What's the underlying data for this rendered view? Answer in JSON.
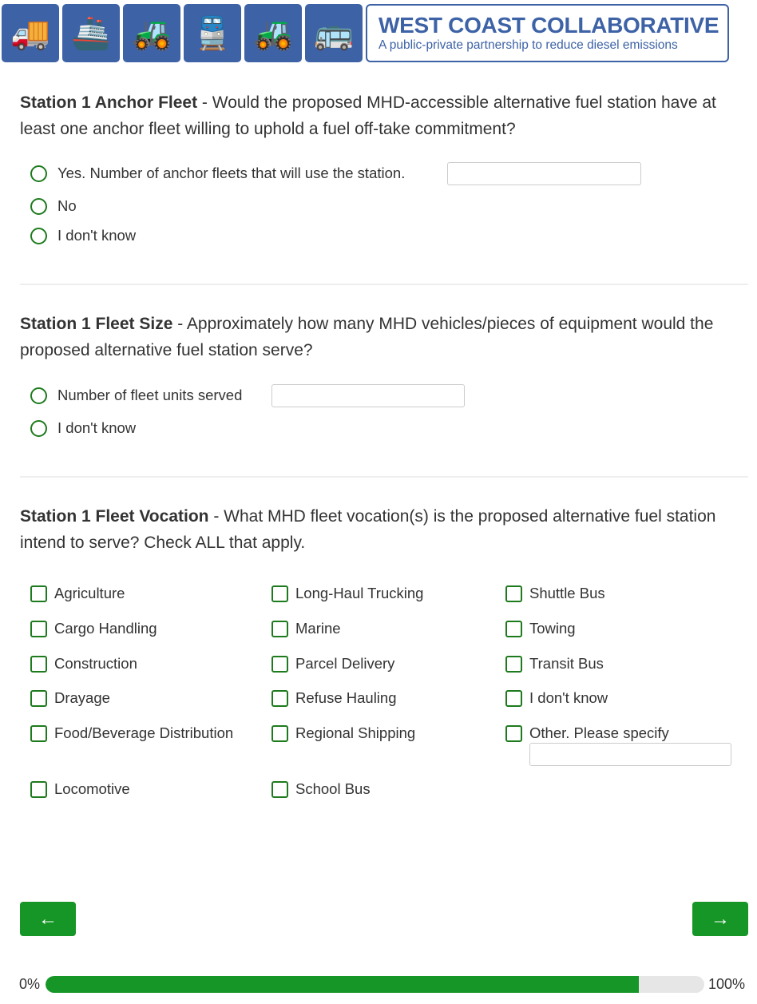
{
  "header": {
    "logo_title": "WEST COAST COLLABORATIVE",
    "logo_subtitle": "A public-private partnership to reduce diesel emissions",
    "icons": [
      "truck-icon",
      "ship-icon",
      "loader-icon",
      "locomotive-icon",
      "tractor-icon",
      "bus-icon"
    ]
  },
  "q1": {
    "title": "Station 1 Anchor Fleet",
    "text": " - Would the proposed MHD-accessible alternative fuel station have at least one anchor fleet willing to uphold a fuel off-take commitment?",
    "options": [
      "Yes. Number of anchor fleets that will use the station.",
      "No",
      "I don't know"
    ],
    "input_value": ""
  },
  "q2": {
    "title": "Station 1 Fleet Size",
    "text": " - Approximately how many MHD vehicles/pieces of equipment would the proposed alternative fuel station serve?",
    "options": [
      "Number of fleet units served",
      "I don't know"
    ],
    "input_value": ""
  },
  "q3": {
    "title": "Station 1 Fleet Vocation",
    "text": " - What MHD fleet vocation(s) is the proposed alternative fuel station intend to serve? Check ALL that apply.",
    "col1": [
      "Agriculture",
      "Cargo Handling",
      "Construction",
      "Drayage",
      "Food/Beverage Distribution",
      "Locomotive"
    ],
    "col2": [
      "Long-Haul Trucking",
      "Marine",
      "Parcel Delivery",
      "Refuse Hauling",
      "Regional Shipping",
      "School Bus"
    ],
    "col3": [
      "Shuttle Bus",
      "Towing",
      "Transit Bus",
      "I don't know",
      "Other. Please specify"
    ],
    "other_value": ""
  },
  "nav": {
    "back": "←",
    "next": "→"
  },
  "progress": {
    "min_label": "0%",
    "max_label": "100%",
    "percent": 90
  },
  "colors": {
    "accent": "#169626",
    "brand": "#3d62a6"
  }
}
